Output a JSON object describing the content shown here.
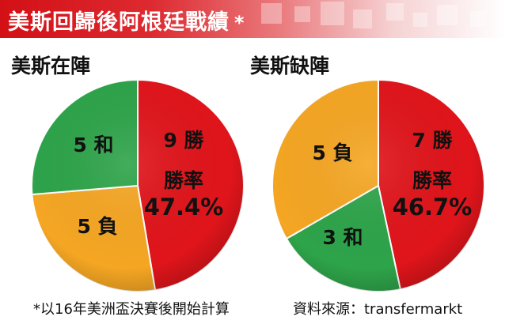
{
  "header": {
    "title": "美斯回歸後阿根廷戰績",
    "marker": "*"
  },
  "chart_data": [
    {
      "type": "pie",
      "title": "美斯在陣",
      "slices": [
        {
          "label": "勝",
          "value": 9,
          "color": "#e0151b",
          "text": "9 勝"
        },
        {
          "label": "負",
          "value": 5,
          "color": "#f5a623",
          "text": "5 負"
        },
        {
          "label": "和",
          "value": 5,
          "color": "#2ea44a",
          "text": "5 和"
        }
      ],
      "win_rate_label": "勝率",
      "win_rate": "47.4%"
    },
    {
      "type": "pie",
      "title": "美斯缺陣",
      "slices": [
        {
          "label": "勝",
          "value": 7,
          "color": "#e0151b",
          "text": "7 勝"
        },
        {
          "label": "和",
          "value": 3,
          "color": "#2ea44a",
          "text": "3 和"
        },
        {
          "label": "負",
          "value": 5,
          "color": "#f5a623",
          "text": "5 負"
        }
      ],
      "win_rate_label": "勝率",
      "win_rate": "46.7%"
    }
  ],
  "footer": {
    "note": "*以16年美洲盃決賽後開始計算",
    "source": "資料來源：transfermarkt"
  }
}
